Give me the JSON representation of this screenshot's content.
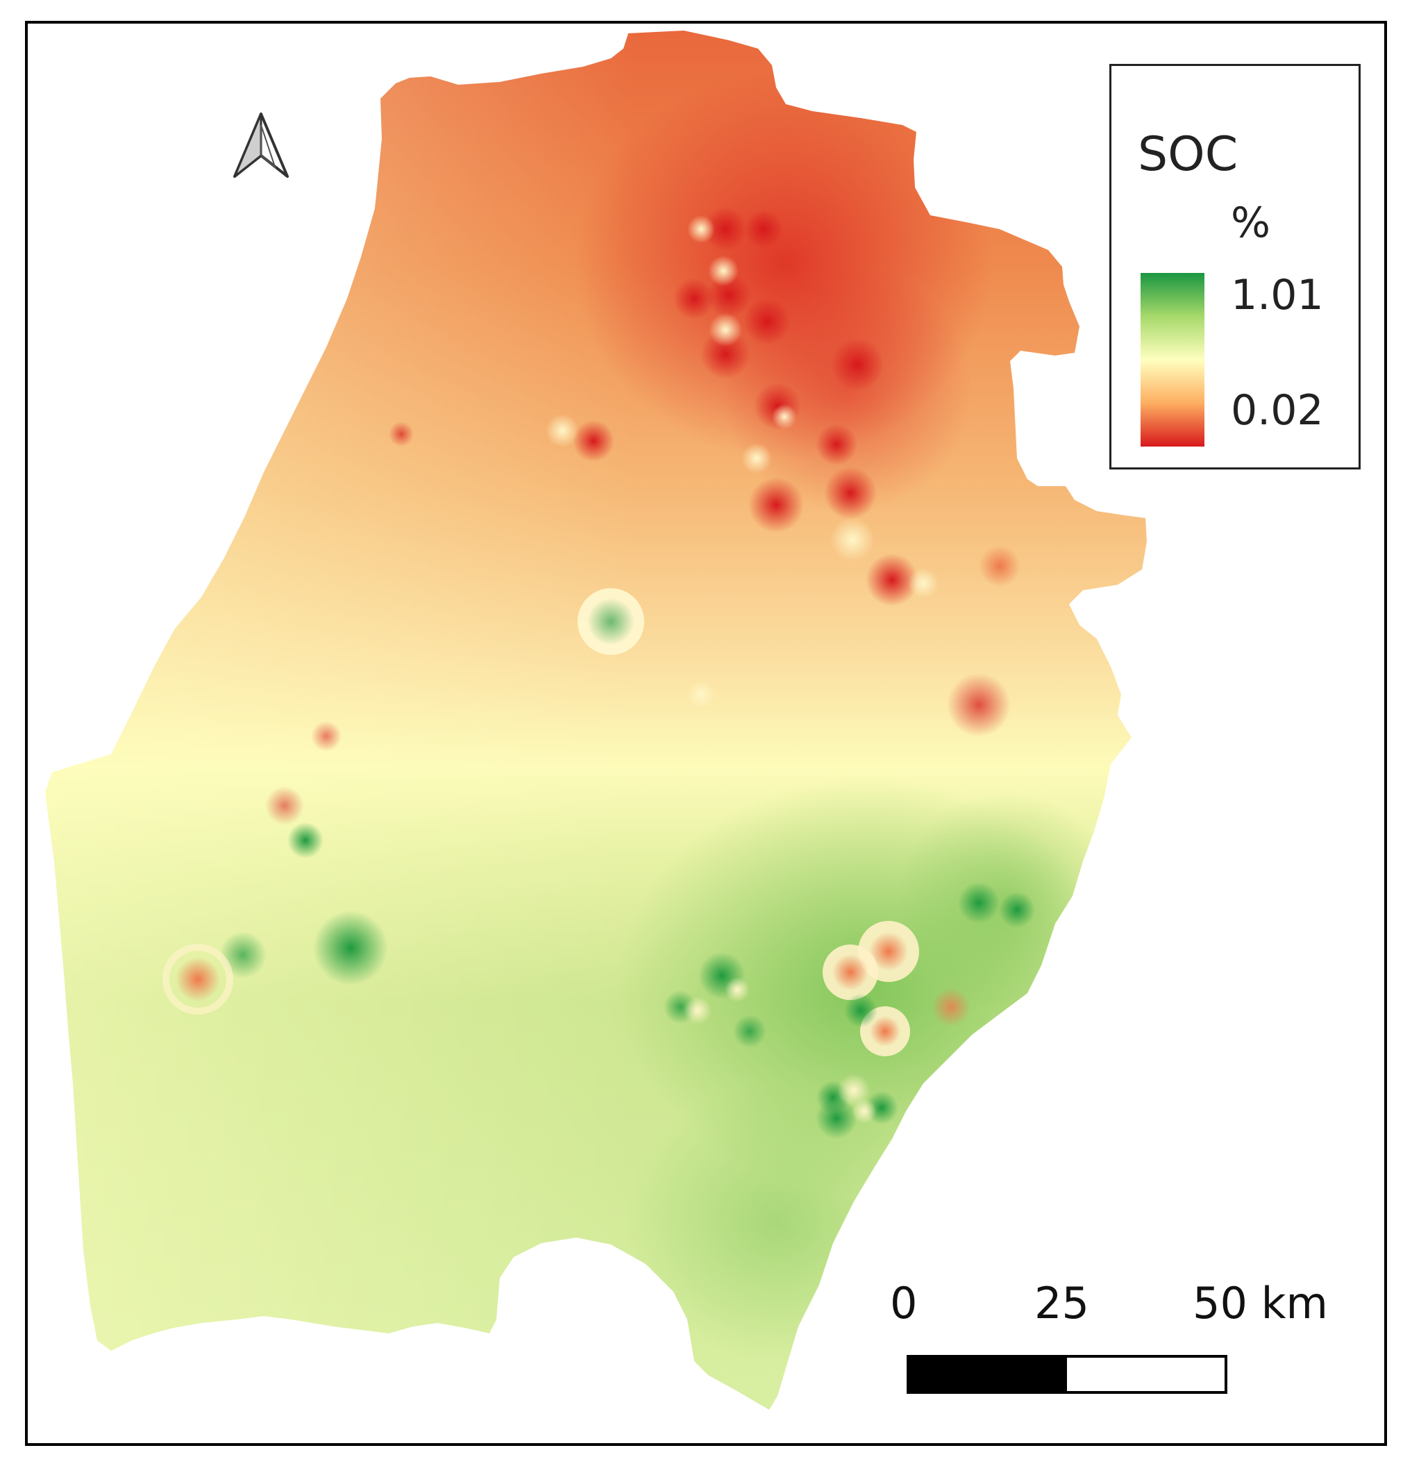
{
  "legend": {
    "title": "SOC",
    "unit": "%",
    "max_label": "1.01",
    "min_label": "0.02",
    "color_ramp": [
      "#1a9641",
      "#a6d96a",
      "#ffffbf",
      "#fdae61",
      "#d7191c"
    ]
  },
  "scale_bar": {
    "labels": [
      "0",
      "25",
      "50 km"
    ],
    "unit": "km"
  },
  "north_arrow": {
    "icon": "north-arrow-icon"
  },
  "colors": {
    "high_soc": "#1a9641",
    "mid_soc": "#ffffbf",
    "low_soc": "#d7191c",
    "frame": "#000000"
  }
}
